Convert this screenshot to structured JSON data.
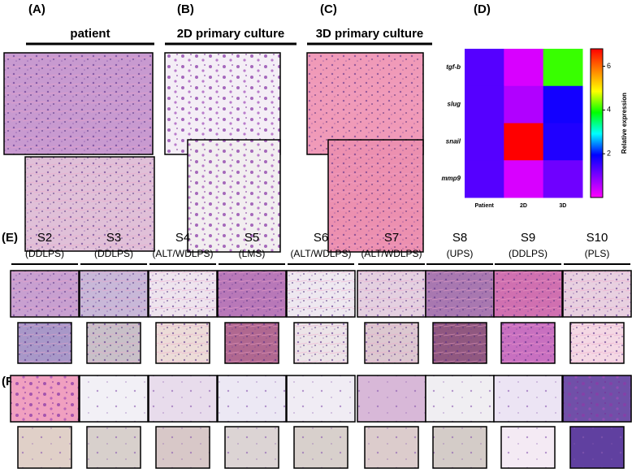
{
  "panel_labels": [
    "(A)",
    "(B)",
    "(C)",
    "(D)",
    "(E)",
    "(F)"
  ],
  "headers": [
    "patient",
    "2D primary culture",
    "3D primary culture"
  ],
  "samples": [
    {
      "name": "S2",
      "subtype": "(DDLPS)"
    },
    {
      "name": "S3",
      "subtype": "(DDLPS)"
    },
    {
      "name": "S4",
      "subtype": "(ALT/WDLPS)"
    },
    {
      "name": "S5",
      "subtype": "(LMS)"
    },
    {
      "name": "S6",
      "subtype": "(ALT/WDLPS)"
    },
    {
      "name": "S7",
      "subtype": "(ALT/WDLPS)"
    },
    {
      "name": "S8",
      "subtype": "(UPS)"
    },
    {
      "name": "S9",
      "subtype": "(DDLPS)"
    },
    {
      "name": "S10",
      "subtype": "(PLS)"
    }
  ],
  "chart_data": {
    "type": "heatmap",
    "rows": [
      "tgf-b",
      "slug",
      "snail",
      "mmp9"
    ],
    "columns": [
      "Patient",
      "2D",
      "3D"
    ],
    "values": [
      [
        1.3,
        0.3,
        4.1
      ],
      [
        1.3,
        0.6,
        1.8
      ],
      [
        1.3,
        6.8,
        1.7
      ],
      [
        1.3,
        0.3,
        1.1
      ]
    ],
    "colorbar_label": "Relative expression",
    "clim": [
      0,
      6.8
    ],
    "cticks": [
      2,
      4,
      6
    ],
    "colormap": [
      "#ff00ff",
      "#8000ff",
      "#0000ff",
      "#00ffff",
      "#00ff00",
      "#ffff00",
      "#ff8000",
      "#ff0000"
    ]
  }
}
